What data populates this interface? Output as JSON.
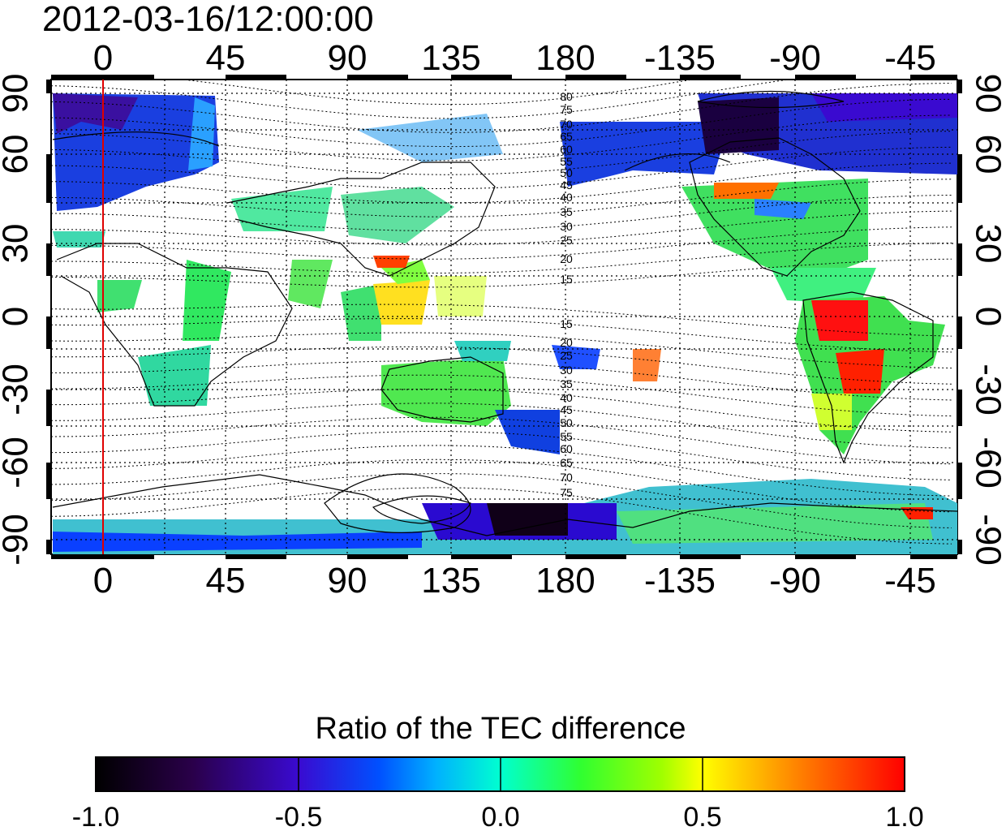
{
  "title": "2012-03-16/12:00:00",
  "axes": {
    "top_lon_ticks": [
      "0",
      "45",
      "90",
      "135",
      "180",
      "-135",
      "-90",
      "-45"
    ],
    "bottom_lon_ticks": [
      "0",
      "45",
      "90",
      "135",
      "180",
      "-135",
      "-90",
      "-45"
    ],
    "left_lat_ticks": [
      "90",
      "60",
      "30",
      "0",
      "-30",
      "-60",
      "-90"
    ],
    "right_lat_ticks": [
      "90",
      "60",
      "30",
      "0",
      "-30",
      "-60",
      "-90"
    ]
  },
  "contour_labels": {
    "north": [
      "80",
      "75",
      "70",
      "65",
      "60",
      "55",
      "50",
      "45",
      "40",
      "35",
      "30",
      "25",
      "20",
      "15"
    ],
    "south": [
      "15",
      "20",
      "25",
      "30",
      "35",
      "40",
      "45",
      "50",
      "55",
      "60",
      "65",
      "70",
      "75"
    ]
  },
  "colorbar": {
    "title": "Ratio of the TEC difference",
    "tick_labels": [
      "-1.0",
      "-0.5",
      "0.0",
      "0.5",
      "1.0"
    ],
    "range": [
      -1.0,
      1.0
    ],
    "colors": [
      "#000000",
      "#3a0060",
      "#0000ff",
      "#00ffff",
      "#00ff00",
      "#ffff00",
      "#ff0000"
    ]
  },
  "reference_line": {
    "longitude": "0",
    "color": "#e00000"
  }
}
